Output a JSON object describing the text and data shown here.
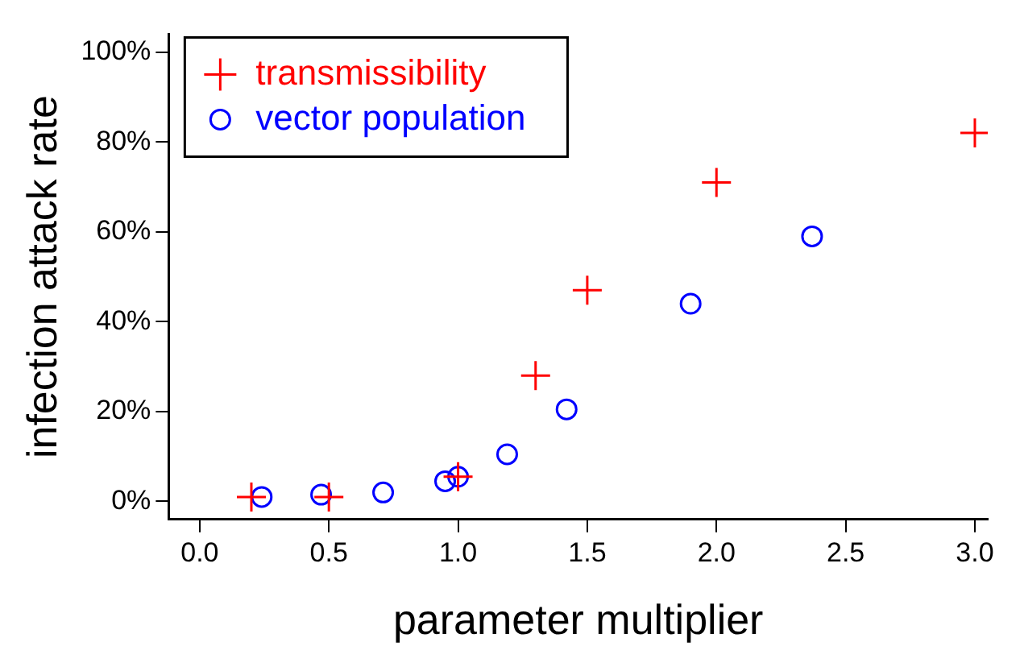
{
  "chart_data": {
    "type": "scatter",
    "xlabel": "parameter multiplier",
    "ylabel": "infection attack rate",
    "series": [
      {
        "name": "transmissibility",
        "color": "#ff0000",
        "marker": "cross",
        "x": [
          0.2,
          0.5,
          1.0,
          1.3,
          1.5,
          2.0,
          3.0
        ],
        "values": [
          1,
          1,
          5.5,
          28,
          47,
          71,
          82
        ]
      },
      {
        "name": "vector population",
        "color": "#0000ff",
        "marker": "circle",
        "x": [
          0.24,
          0.47,
          0.71,
          0.95,
          1.0,
          1.19,
          1.42,
          1.9,
          2.37
        ],
        "values": [
          1,
          1.5,
          2,
          4.5,
          5.5,
          10.5,
          20.5,
          44,
          59
        ]
      }
    ],
    "xlim": [
      -0.12,
      3.05
    ],
    "xticks": [
      {
        "value": 0,
        "label": "0.0"
      },
      {
        "value": 0.5,
        "label": "0.5"
      },
      {
        "value": 1,
        "label": "1.0"
      },
      {
        "value": 1.5,
        "label": "1.5"
      },
      {
        "value": 2,
        "label": "2.0"
      },
      {
        "value": 2.5,
        "label": "2.5"
      },
      {
        "value": 3,
        "label": "3.0"
      }
    ],
    "ylim": [
      -4,
      104
    ],
    "yticks": [
      {
        "value": 0,
        "label": "0%"
      },
      {
        "value": 20,
        "label": "20%"
      },
      {
        "value": 40,
        "label": "40%"
      },
      {
        "value": 60,
        "label": "60%"
      },
      {
        "value": 80,
        "label": "80%"
      },
      {
        "value": 100,
        "label": "100%"
      }
    ],
    "grid": false,
    "legend": "top left"
  }
}
